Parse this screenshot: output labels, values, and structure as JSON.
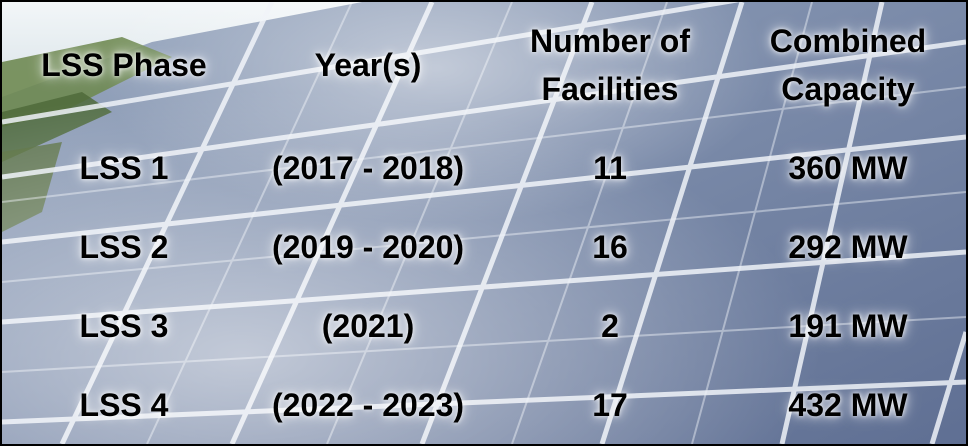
{
  "table": {
    "headers": [
      {
        "line1": "LSS Phase",
        "line2": ""
      },
      {
        "line1": "Year(s)",
        "line2": ""
      },
      {
        "line1": "Number of",
        "line2": "Facilities"
      },
      {
        "line1": "Combined",
        "line2": "Capacity"
      }
    ],
    "rows": [
      {
        "phase": "LSS 1",
        "years": "(2017 - 2018)",
        "facilities": "11",
        "capacity": "360 MW"
      },
      {
        "phase": "LSS 2",
        "years": "(2019 - 2020)",
        "facilities": "16",
        "capacity": "292 MW"
      },
      {
        "phase": "LSS 3",
        "years": "(2021)",
        "facilities": "2",
        "capacity": "191 MW"
      },
      {
        "phase": "LSS 4",
        "years": "(2022 - 2023)",
        "facilities": "17",
        "capacity": "432 MW"
      }
    ]
  },
  "colors": {
    "text": "#000000",
    "border": "#000000",
    "panel_cell": "#6f7fa0",
    "panel_grid": "#eef2f8",
    "sky": "#e6eef2",
    "trees": "#6f8a52"
  }
}
